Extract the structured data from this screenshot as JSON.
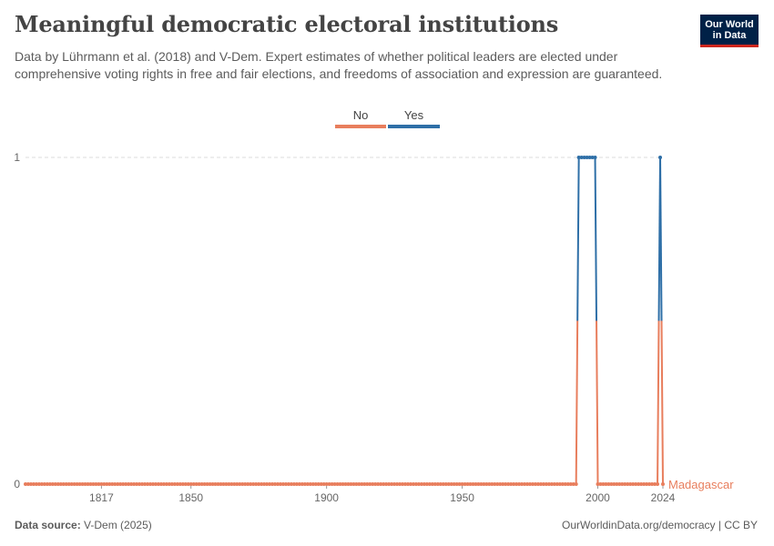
{
  "header": {
    "title": "Meaningful democratic electoral institutions",
    "subtitle": "Data by Lührmann et al. (2018) and V-Dem. Expert estimates of whether political leaders are elected under comprehensive voting rights in free and fair elections, and freedoms of association and expression are guaranteed."
  },
  "logo": {
    "line1": "Our World",
    "line2": "in Data"
  },
  "footer": {
    "source_label": "Data source:",
    "source_value": "V-Dem (2025)",
    "right": "OurWorldinData.org/democracy | CC BY"
  },
  "colors": {
    "no": "#e87e5d",
    "yes": "#2e6fa7",
    "grid": "#dddddd",
    "axis": "#666666"
  },
  "chart_data": {
    "type": "line",
    "title": "Meaningful democratic electoral institutions",
    "entity": "Madagascar",
    "legend": {
      "placement": "top-center",
      "entries": [
        {
          "label": "No"
        },
        {
          "label": "Yes"
        }
      ]
    },
    "x_range": [
      1789,
      2024
    ],
    "y_range": [
      0,
      1
    ],
    "x_ticks": [
      1817,
      1850,
      1900,
      1950,
      2000,
      2024
    ],
    "y_ticks": [
      0,
      1
    ],
    "series": [
      {
        "name": "Madagascar",
        "x_start": 1789,
        "x_end": 2024,
        "yes_years": [
          1993,
          1994,
          1995,
          1996,
          1997,
          1998,
          1999,
          2023
        ]
      }
    ]
  }
}
